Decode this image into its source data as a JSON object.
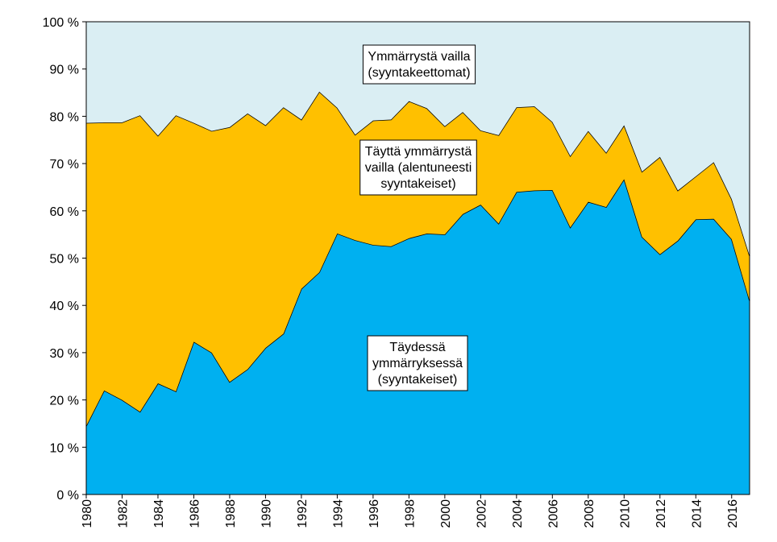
{
  "chart_data": {
    "type": "stacked-area",
    "x": [
      1980,
      1981,
      1982,
      1983,
      1984,
      1985,
      1986,
      1987,
      1988,
      1989,
      1990,
      1991,
      1992,
      1993,
      1994,
      1995,
      1996,
      1997,
      1998,
      1999,
      2000,
      2001,
      2002,
      2003,
      2004,
      2005,
      2006,
      2007,
      2008,
      2009,
      2010,
      2011,
      2012,
      2013,
      2014,
      2015,
      2016,
      2017
    ],
    "xlim": [
      1980,
      2017
    ],
    "xticks": [
      1980,
      1982,
      1984,
      1986,
      1988,
      1990,
      1992,
      1994,
      1996,
      1998,
      2000,
      2002,
      2004,
      2006,
      2008,
      2010,
      2012,
      2014,
      2016
    ],
    "ylim": [
      0,
      100
    ],
    "yticks": [
      {
        "value": 0,
        "label": "0 %"
      },
      {
        "value": 10,
        "label": "10 %"
      },
      {
        "value": 20,
        "label": "20 %"
      },
      {
        "value": 30,
        "label": "30 %"
      },
      {
        "value": 40,
        "label": "40 %"
      },
      {
        "value": 50,
        "label": "50 %"
      },
      {
        "value": 60,
        "label": "60 %"
      },
      {
        "value": 70,
        "label": "70 %"
      },
      {
        "value": 80,
        "label": "80 %"
      },
      {
        "value": 90,
        "label": "90 %"
      },
      {
        "value": 100,
        "label": "100 %"
      }
    ],
    "series": [
      {
        "label": [
          "Täydessä",
          "ymmärryksessä",
          "(syyntakeiset)"
        ],
        "color": "#00b0f0",
        "values": [
          14.5,
          22,
          20,
          17.5,
          23.5,
          21.8,
          32.3,
          30,
          23.8,
          26.5,
          31,
          34,
          43.5,
          47,
          55.2,
          53.8,
          52.8,
          52.5,
          54.2,
          55.2,
          55,
          59.3,
          61.3,
          57.3,
          64,
          64.3,
          64.4,
          56.5,
          61.9,
          60.8,
          66.7,
          54.5,
          50.8,
          53.7,
          58.2,
          58.3,
          54,
          41
        ]
      },
      {
        "label": [
          "Täyttä ymmärrystä",
          "vailla (alentuneesti",
          "syyntakeiset)"
        ],
        "color": "#ffc000",
        "values": [
          64.1,
          56.7,
          58.7,
          62.7,
          52.4,
          58.4,
          46.3,
          46.9,
          53.9,
          54.1,
          47.1,
          47.9,
          35.8,
          38.2,
          26.6,
          22.3,
          26.3,
          26.8,
          29.0,
          26.5,
          22.9,
          21.6,
          15.7,
          18.7,
          17.9,
          17.8,
          14.4,
          15.1,
          15.0,
          11.5,
          11.4,
          13.8,
          20.6,
          10.6,
          9.1,
          12.0,
          8.5,
          9.5
        ]
      },
      {
        "label": [
          "Ymmärrystä vailla",
          "(syyntakeettomat)"
        ],
        "color": "#daeef3",
        "values": [
          21.4,
          21.3,
          21.3,
          19.8,
          24.1,
          19.8,
          21.4,
          23.1,
          22.3,
          19.4,
          21.9,
          18.1,
          20.7,
          14.8,
          18.2,
          23.9,
          20.9,
          20.7,
          16.8,
          18.3,
          22.1,
          19.1,
          23.0,
          24.0,
          18.1,
          17.9,
          21.2,
          28.4,
          23.1,
          27.7,
          21.9,
          31.7,
          28.6,
          35.7,
          32.7,
          29.7,
          37.5,
          49.5
        ]
      }
    ]
  }
}
